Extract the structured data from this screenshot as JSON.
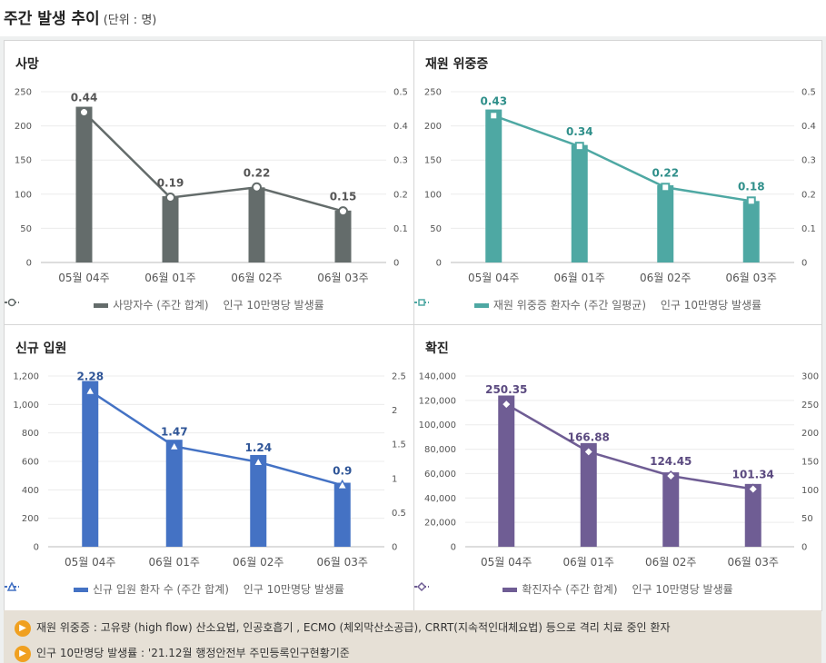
{
  "header": {
    "title": "주간 발생 추이",
    "unit": "(단위 : 명)"
  },
  "chart_data": [
    {
      "id": "death",
      "type": "bar",
      "title": "사망",
      "categories": [
        "05월 04주",
        "06월 01주",
        "06월 02주",
        "06월 03주"
      ],
      "bar_series": {
        "name": "사망자수 (주간 합계)",
        "values": [
          228,
          97,
          110,
          76
        ],
        "color": "#646c6b"
      },
      "line_series": {
        "name": "인구 10만명당 발생률",
        "values": [
          0.44,
          0.19,
          0.22,
          0.15
        ],
        "labels": [
          "0.44",
          "0.19",
          "0.22",
          "0.15"
        ],
        "color": "#646c6b",
        "marker": "circle"
      },
      "y_left": {
        "min": 0,
        "max": 250,
        "ticks": [
          "250",
          "200",
          "150",
          "100",
          "50",
          "0"
        ]
      },
      "y_right": {
        "min": 0,
        "max": 0.5,
        "ticks": [
          "0.5",
          "0.4",
          "0.3",
          "0.2",
          "0.1",
          "0"
        ]
      },
      "label_color": "#555555"
    },
    {
      "id": "severe",
      "type": "bar",
      "title": "재원 위중증",
      "categories": [
        "05월 04주",
        "06월 01주",
        "06월 02주",
        "06월 03주"
      ],
      "bar_series": {
        "name": "재원 위중증 환자수 (주간 일평균)",
        "values": [
          224,
          172,
          113,
          90
        ],
        "color": "#4ea8a3"
      },
      "line_series": {
        "name": "인구 10만명당 발생률",
        "values": [
          0.43,
          0.34,
          0.22,
          0.18
        ],
        "labels": [
          "0.43",
          "0.34",
          "0.22",
          "0.18"
        ],
        "color": "#4ea8a3",
        "marker": "square"
      },
      "y_left": {
        "min": 0,
        "max": 250,
        "ticks": [
          "250",
          "200",
          "150",
          "100",
          "50",
          "0"
        ]
      },
      "y_right": {
        "min": 0,
        "max": 0.5,
        "ticks": [
          "0.5",
          "0.4",
          "0.3",
          "0.2",
          "0.1",
          "0"
        ]
      },
      "label_color": "#2f8f8a"
    },
    {
      "id": "admission",
      "type": "bar",
      "title": "신규 입원",
      "categories": [
        "05월 04주",
        "06월 01주",
        "06월 02주",
        "06월 03주"
      ],
      "bar_series": {
        "name": "신규 입원 환자 수 (주간 합계)",
        "values": [
          1165,
          752,
          645,
          450
        ],
        "color": "#4472c4"
      },
      "line_series": {
        "name": "인구 10만명당 발생률",
        "values": [
          2.28,
          1.47,
          1.24,
          0.9
        ],
        "labels": [
          "2.28",
          "1.47",
          "1.24",
          "0.9"
        ],
        "color": "#4472c4",
        "marker": "triangle"
      },
      "y_left": {
        "min": 0,
        "max": 1200,
        "ticks": [
          "1,200",
          "1,000",
          "800",
          "600",
          "400",
          "200",
          "0"
        ]
      },
      "y_right": {
        "min": 0,
        "max": 2.5,
        "ticks": [
          "2.5",
          "2",
          "1.5",
          "1",
          "0.5",
          "0"
        ]
      },
      "label_color": "#2f5597"
    },
    {
      "id": "confirmed",
      "type": "bar",
      "title": "확진",
      "categories": [
        "05월 04주",
        "06월 01주",
        "06월 02주",
        "06월 03주"
      ],
      "bar_series": {
        "name": "확진자수 (주간 합계)",
        "values": [
          124000,
          85000,
          61000,
          51500
        ],
        "color": "#6f5d94"
      },
      "line_series": {
        "name": "인구 10만명당 발생률",
        "values": [
          250.35,
          166.88,
          124.45,
          101.34
        ],
        "labels": [
          "250.35",
          "166.88",
          "124.45",
          "101.34"
        ],
        "color": "#6f5d94",
        "marker": "diamond"
      },
      "y_left": {
        "min": 0,
        "max": 140000,
        "ticks": [
          "140,000",
          "120,000",
          "100,000",
          "80,000",
          "60,000",
          "40,000",
          "20,000",
          "0"
        ]
      },
      "y_right": {
        "min": 0,
        "max": 300,
        "ticks": [
          "300",
          "250",
          "200",
          "150",
          "100",
          "50",
          "0"
        ]
      },
      "label_color": "#5b4a80"
    }
  ],
  "notes": [
    {
      "icon": "speaker-icon",
      "text": "재원 위중증 : 고유량 (high flow) 산소요법, 인공호흡기 , ECMO (체외막산소공급), CRRT(지속적인대체요법) 등으로 격리 치료 중인 환자"
    },
    {
      "icon": "speaker-icon",
      "text": "인구 10만명당 발생률 : '21.12월 행정안전부 주민등록인구현황기준"
    }
  ]
}
